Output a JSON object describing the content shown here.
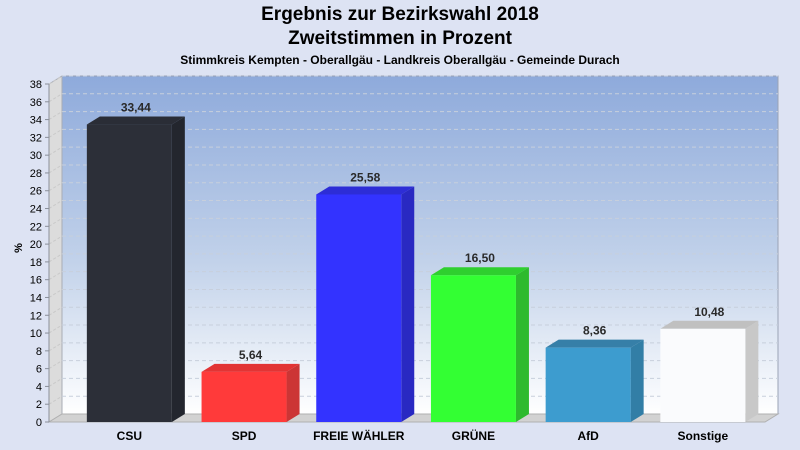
{
  "chart_data": {
    "type": "bar",
    "title": "Ergebnis zur Bezirkswahl 2018",
    "subtitle": "Zweitstimmen in Prozent",
    "subtitle2": "Stimmkreis Kempten - Oberallgäu - Landkreis Oberallgäu - Gemeinde Durach",
    "xlabel": "",
    "ylabel": "%",
    "ylim": [
      0,
      38
    ],
    "yticks": [
      "0",
      "2",
      "4",
      "6",
      "8",
      "10",
      "12",
      "14",
      "16",
      "18",
      "20",
      "22",
      "24",
      "26",
      "28",
      "30",
      "32",
      "34",
      "36",
      "38"
    ],
    "grid": true,
    "categories": [
      "CSU",
      "SPD",
      "FREIE WÄHLER",
      "GRÜNE",
      "AfD",
      "Sonstige"
    ],
    "values": [
      33.44,
      5.64,
      25.58,
      16.5,
      8.36,
      10.48
    ],
    "value_labels": [
      "33,44",
      "5,64",
      "25,58",
      "16,50",
      "8,36",
      "10,48"
    ],
    "colors": [
      "#2c2f38",
      "#ff3a3a",
      "#3333ff",
      "#33ff33",
      "#3d9ccf",
      "#fafbfd"
    ],
    "side_colors": [
      "#23262e",
      "#cc3535",
      "#2929c2",
      "#2eba2e",
      "#327ea6",
      "#c8c8c8"
    ],
    "top_colors": [
      "#2a2d36",
      "#e23434",
      "#2d2dd6",
      "#2fcf2f",
      "#367fa8",
      "#c0c0c0"
    ]
  }
}
